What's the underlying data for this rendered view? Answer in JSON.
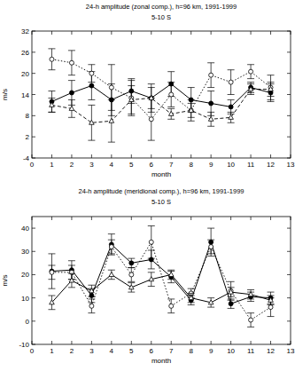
{
  "chart_data": [
    {
      "type": "line",
      "title": "24-h amplitude (zonal comp.), h=96 km, 1991-1999",
      "subtitle": "5-10 S",
      "x_label": "month",
      "y_label": "m/s",
      "x": [
        1,
        2,
        3,
        4,
        5,
        6,
        7,
        8,
        9,
        10,
        11,
        12
      ],
      "xlim": [
        0,
        13
      ],
      "xticks": [
        0,
        1,
        2,
        3,
        4,
        5,
        6,
        7,
        8,
        9,
        10,
        11,
        12,
        13
      ],
      "ylim": [
        -4,
        32
      ],
      "yticks": [
        -4,
        2,
        8,
        14,
        20,
        26,
        32
      ],
      "grid": false,
      "series": [
        {
          "color": "#000000",
          "marker": "filled-circle",
          "line_style": "solid",
          "values": [
            12,
            14.5,
            16.5,
            12.5,
            15,
            13,
            17,
            12.5,
            11.5,
            10.5,
            16,
            14.5
          ],
          "errors": [
            3,
            3.5,
            4,
            4.5,
            3.5,
            4,
            3.5,
            3.5,
            3.5,
            2,
            1.5,
            2.5
          ]
        },
        {
          "color": "#000000",
          "marker": "open-circle",
          "line_style": "dotted",
          "values": [
            24,
            23,
            20,
            16,
            13,
            7,
            14,
            9.5,
            19.5,
            17.5,
            20.5,
            16
          ],
          "errors": [
            3,
            3.5,
            2.5,
            6.5,
            5,
            6,
            3.5,
            3,
            3.5,
            3.5,
            2,
            3.5
          ]
        },
        {
          "color": "#000000",
          "marker": "open-triangle",
          "line_style": "dashed",
          "values": [
            11,
            10,
            6,
            6.5,
            12.5,
            13,
            8.5,
            9.5,
            7,
            7.5,
            15.5,
            15.5
          ],
          "errors": [
            2,
            2.5,
            5,
            6,
            4,
            3,
            1.5,
            2,
            2,
            1.5,
            1.5,
            2
          ]
        }
      ]
    },
    {
      "type": "line",
      "title": "24-h amplitude (meridional comp.), h=96 km, 1991-1999",
      "subtitle": "5-10 S",
      "x_label": "month",
      "y_label": "m/s",
      "x": [
        1,
        2,
        3,
        4,
        5,
        6,
        7,
        8,
        9,
        10,
        11,
        12
      ],
      "xlim": [
        0,
        13
      ],
      "xticks": [
        0,
        1,
        2,
        3,
        4,
        5,
        6,
        7,
        8,
        9,
        10,
        11,
        12,
        13
      ],
      "ylim": [
        -10,
        45
      ],
      "yticks": [
        -10,
        0,
        10,
        20,
        30,
        40
      ],
      "grid": false,
      "series": [
        {
          "color": "#000000",
          "marker": "filled-circle",
          "line_style": "solid",
          "values": [
            21.5,
            22,
            11,
            33,
            25,
            26.5,
            19,
            9,
            34,
            7.5,
            10.5,
            10
          ],
          "errors": [
            7.5,
            4,
            3,
            4.5,
            2,
            4,
            2.5,
            2,
            6,
            2,
            2,
            2.5
          ]
        },
        {
          "color": "#000000",
          "marker": "open-circle",
          "line_style": "dotted",
          "values": [
            21,
            21,
            6.5,
            32,
            20,
            34,
            6.5,
            12,
            32,
            13,
            0.5,
            6
          ],
          "errors": [
            3,
            3,
            3,
            3,
            3,
            7,
            3,
            2,
            3,
            4,
            3,
            4
          ]
        },
        {
          "color": "#000000",
          "marker": "open-triangle",
          "line_style": "solid",
          "values": [
            8,
            17.5,
            13,
            20,
            14.5,
            18,
            20,
            10,
            8,
            12.5,
            11.5,
            9
          ],
          "errors": [
            3,
            3,
            2.5,
            2,
            2,
            3,
            2,
            2,
            2,
            2,
            2,
            2
          ]
        }
      ]
    }
  ]
}
